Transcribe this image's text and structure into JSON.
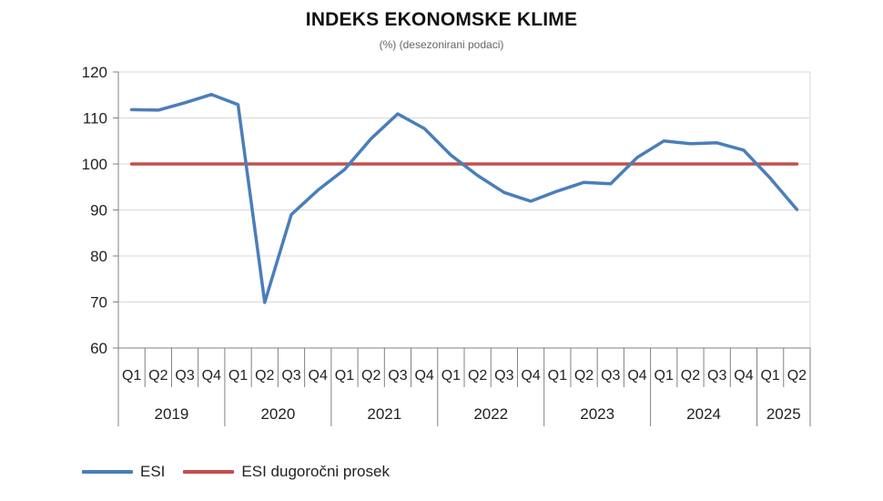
{
  "title": "INDEKS EKONOMSKE KLIME",
  "subtitle": "(%) (desezonirani podaci)",
  "colors": {
    "esi": "#4a7ebb",
    "prosek": "#c0504d",
    "grid": "#d9d9d9",
    "axis": "#808080"
  },
  "chart_data": {
    "type": "line",
    "title": "INDEKS EKONOMSKE KLIME",
    "subtitle": "(%) (desezonirani podaci)",
    "categories": [
      "Q1",
      "Q2",
      "Q3",
      "Q4",
      "Q1",
      "Q2",
      "Q3",
      "Q4",
      "Q1",
      "Q2",
      "Q3",
      "Q4",
      "Q1",
      "Q2",
      "Q3",
      "Q4",
      "Q1",
      "Q2",
      "Q3",
      "Q4",
      "Q1",
      "Q2",
      "Q3",
      "Q4",
      "Q1",
      "Q2"
    ],
    "years": [
      {
        "label": "2019",
        "start": 0,
        "count": 4
      },
      {
        "label": "2020",
        "start": 4,
        "count": 4
      },
      {
        "label": "2021",
        "start": 8,
        "count": 4
      },
      {
        "label": "2022",
        "start": 12,
        "count": 4
      },
      {
        "label": "2023",
        "start": 16,
        "count": 4
      },
      {
        "label": "2024",
        "start": 20,
        "count": 4
      },
      {
        "label": "2025",
        "start": 24,
        "count": 2
      }
    ],
    "series": [
      {
        "name": "ESI",
        "color": "#4a7ebb",
        "values": [
          111.8,
          111.7,
          113.3,
          115.1,
          112.9,
          69.9,
          89.0,
          94.3,
          98.8,
          105.5,
          110.9,
          107.7,
          101.9,
          97.5,
          93.8,
          91.9,
          94.1,
          96.0,
          95.7,
          101.4,
          105.0,
          104.4,
          104.6,
          103.0,
          96.9,
          90.1
        ]
      },
      {
        "name": "ESI dugoročni prosek",
        "color": "#c0504d",
        "values": [
          100,
          100,
          100,
          100,
          100,
          100,
          100,
          100,
          100,
          100,
          100,
          100,
          100,
          100,
          100,
          100,
          100,
          100,
          100,
          100,
          100,
          100,
          100,
          100,
          100,
          100
        ]
      }
    ],
    "ylim": [
      60,
      120
    ],
    "yticks": [
      60,
      70,
      80,
      90,
      100,
      110,
      120
    ],
    "grid": true,
    "legend": "bottom-left"
  }
}
